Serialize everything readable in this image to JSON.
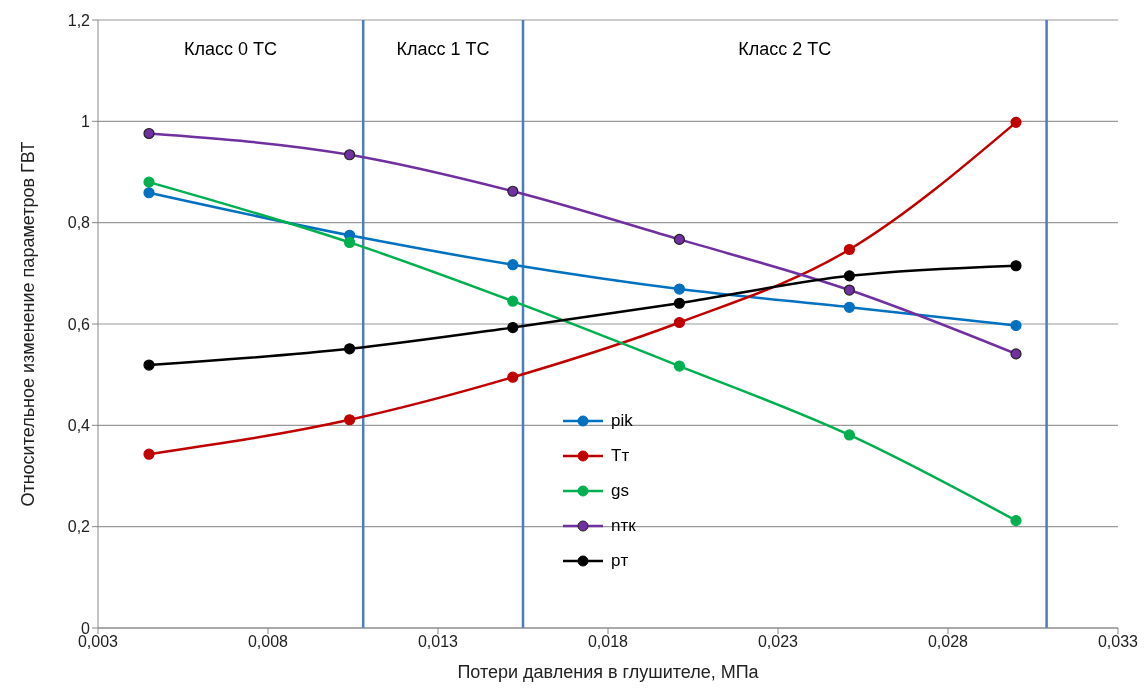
{
  "chart_data": {
    "type": "line",
    "xlabel": "Потери давления в глушителе, МПа",
    "ylabel": "Относительное изменение параметров ГВТ",
    "x": [
      0.0045,
      0.0104,
      0.0152,
      0.0201,
      0.0251,
      0.03
    ],
    "series": [
      {
        "name": "pik",
        "color": "#0070c0",
        "values": [
          0.859,
          0.775,
          0.717,
          0.669,
          0.633,
          0.597
        ]
      },
      {
        "name": "Tт",
        "color": "#c00000",
        "values": [
          0.343,
          0.411,
          0.495,
          0.603,
          0.747,
          0.998
        ]
      },
      {
        "name": "gs",
        "color": "#00b050",
        "values": [
          0.88,
          0.761,
          0.645,
          0.517,
          0.381,
          0.212
        ]
      },
      {
        "name": "nтк",
        "color": "#7030a0",
        "values": [
          0.976,
          0.934,
          0.862,
          0.767,
          0.667,
          0.541
        ]
      },
      {
        "name": "pт",
        "color": "#000000",
        "values": [
          0.519,
          0.551,
          0.593,
          0.641,
          0.695,
          0.715
        ]
      }
    ],
    "xlim": [
      0.003,
      0.033
    ],
    "xticks": [
      {
        "value": 0.003,
        "label": "0,003"
      },
      {
        "value": 0.008,
        "label": "0,008"
      },
      {
        "value": 0.013,
        "label": "0,013"
      },
      {
        "value": 0.018,
        "label": "0,018"
      },
      {
        "value": 0.023,
        "label": "0,023"
      },
      {
        "value": 0.028,
        "label": "0,028"
      },
      {
        "value": 0.033,
        "label": "0,033"
      }
    ],
    "ylim": [
      0,
      1.2
    ],
    "yticks": [
      0,
      {
        "value": 0.2,
        "label": "0,2"
      },
      {
        "value": 0.4,
        "label": "0,4"
      },
      {
        "value": 0.6,
        "label": "0,6"
      },
      {
        "value": 0.8,
        "label": "0,8"
      },
      1,
      {
        "value": 1.2,
        "label": "1,2"
      }
    ],
    "ref_lines": [
      {
        "axis": "x",
        "value": 0.0108,
        "color": "#4a7ebb"
      },
      {
        "axis": "x",
        "value": 0.0155,
        "color": "#4a7ebb"
      },
      {
        "axis": "x",
        "value": 0.0309,
        "color": "#4a7ebb"
      }
    ],
    "annotations": [
      "Класс 0 ТС",
      "Класс 1 ТС",
      "Класс 2 ТС"
    ],
    "grid": "y",
    "legend": "bottom",
    "marker": "circle",
    "line_style": "solid"
  }
}
